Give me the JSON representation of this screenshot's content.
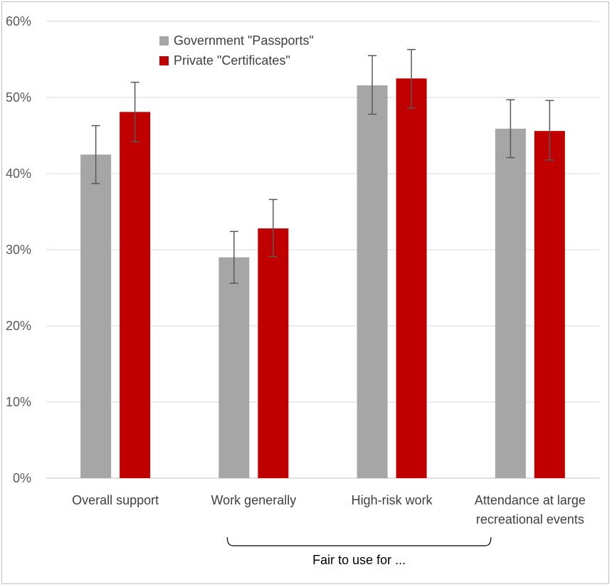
{
  "chart_data": {
    "type": "bar",
    "title": "",
    "xlabel": "",
    "ylabel": "",
    "ylim": [
      0,
      60
    ],
    "ytick_step": 10,
    "y_tick_format": "percent",
    "grid": true,
    "legend_position": "top-left",
    "categories": [
      [
        "Overall support"
      ],
      [
        "Work generally"
      ],
      [
        "High-risk work"
      ],
      [
        "Attendance at large",
        "recreational events"
      ]
    ],
    "series": [
      {
        "name": "Government \"Passports\"",
        "color": "#a6a6a6",
        "values": [
          42.5,
          29.0,
          51.6,
          45.9
        ],
        "error_low": [
          38.7,
          25.6,
          47.8,
          42.1
        ],
        "error_high": [
          46.3,
          32.4,
          55.5,
          49.7
        ]
      },
      {
        "name": "Private \"Certificates\"",
        "color": "#c00000",
        "values": [
          48.1,
          32.8,
          52.5,
          45.6
        ],
        "error_low": [
          44.2,
          29.1,
          48.6,
          41.8
        ],
        "error_high": [
          52.0,
          36.6,
          56.3,
          49.6
        ]
      }
    ],
    "annotation": {
      "text": "Fair to use for ...",
      "spans_categories": [
        1,
        3
      ]
    }
  }
}
